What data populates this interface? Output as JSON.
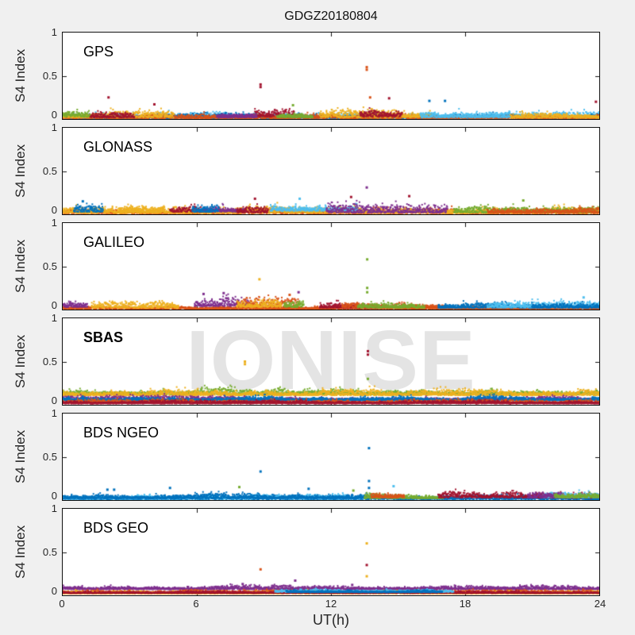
{
  "figure": {
    "title": "GDGZ20180804",
    "xlabel": "UT(h)",
    "ylabel": "S4 Index",
    "watermark": "IONISE",
    "background": "#f0f0f0",
    "panel_bg": "#ffffff",
    "axis_color": "#111111",
    "text_color": "#262626",
    "x_tick_labels": [
      "0",
      "6",
      "12",
      "18",
      "24"
    ],
    "y_tick_labels": [
      "1",
      "0.5",
      "0"
    ]
  },
  "palette": {
    "blue": "#0072BD",
    "orange": "#D95319",
    "yellow": "#EDB120",
    "purple": "#7E2F8E",
    "green": "#77AC30",
    "cyan": "#4DBEEE",
    "red": "#A2142F"
  },
  "chart_data": [
    {
      "type": "scatter",
      "label": "GPS",
      "xlim": [
        0,
        24
      ],
      "ylim": [
        0,
        1
      ],
      "xticks": [
        0,
        6,
        12,
        18,
        24
      ],
      "yticks": [
        0,
        0.5,
        1
      ],
      "bands": [
        {
          "color": "cyan",
          "x0": 0,
          "x1": 24,
          "base": 0.015,
          "amp": 0.07
        },
        {
          "color": "blue",
          "x0": 0,
          "x1": 24,
          "base": 0.01,
          "amp": 0.06
        },
        {
          "color": "orange",
          "x0": 0,
          "x1": 24,
          "base": 0.01,
          "amp": 0.05
        },
        {
          "color": "yellow",
          "x0": 11.5,
          "x1": 16.5,
          "base": 0.02,
          "amp": 0.09
        },
        {
          "color": "yellow",
          "x0": 0,
          "x1": 5,
          "base": 0.02,
          "amp": 0.07
        },
        {
          "color": "yellow",
          "x0": 20,
          "x1": 24,
          "base": 0.015,
          "amp": 0.06
        },
        {
          "color": "red",
          "x0": 8.6,
          "x1": 10.4,
          "base": 0.03,
          "amp": 0.1
        },
        {
          "color": "red",
          "x0": 1.2,
          "x1": 3.2,
          "base": 0.02,
          "amp": 0.08
        },
        {
          "color": "red",
          "x0": 13.3,
          "x1": 15.2,
          "base": 0.03,
          "amp": 0.08
        },
        {
          "color": "purple",
          "x0": 6.9,
          "x1": 8.7,
          "base": 0.02,
          "amp": 0.07
        },
        {
          "color": "green",
          "x0": 9.6,
          "x1": 11.2,
          "base": 0.02,
          "amp": 0.06
        },
        {
          "color": "green",
          "x0": 0,
          "x1": 1.2,
          "base": 0.03,
          "amp": 0.08
        },
        {
          "color": "cyan",
          "x0": 16,
          "x1": 20,
          "base": 0.02,
          "amp": 0.07
        }
      ],
      "spikes": [
        {
          "x": 8.85,
          "y": 0.4,
          "color": "red"
        },
        {
          "x": 8.85,
          "y": 0.37,
          "color": "red"
        },
        {
          "x": 13.6,
          "y": 0.6,
          "color": "orange"
        },
        {
          "x": 13.6,
          "y": 0.57,
          "color": "orange"
        },
        {
          "x": 2.05,
          "y": 0.25,
          "color": "red"
        },
        {
          "x": 13.75,
          "y": 0.25,
          "color": "orange"
        },
        {
          "x": 14.6,
          "y": 0.24,
          "color": "red"
        },
        {
          "x": 16.4,
          "y": 0.21,
          "color": "blue"
        },
        {
          "x": 17.1,
          "y": 0.21,
          "color": "blue"
        },
        {
          "x": 23.85,
          "y": 0.2,
          "color": "red"
        },
        {
          "x": 4.1,
          "y": 0.17,
          "color": "red"
        },
        {
          "x": 10.3,
          "y": 0.16,
          "color": "green"
        }
      ]
    },
    {
      "type": "scatter",
      "label": "GLONASS",
      "xlim": [
        0,
        24
      ],
      "ylim": [
        0,
        1
      ],
      "xticks": [
        0,
        6,
        12,
        18,
        24
      ],
      "yticks": [
        0,
        0.5,
        1
      ],
      "bands": [
        {
          "color": "orange",
          "x0": 0,
          "x1": 24,
          "base": 0.01,
          "amp": 0.06
        },
        {
          "color": "yellow",
          "x0": 0,
          "x1": 24,
          "base": 0.015,
          "amp": 0.08
        },
        {
          "color": "cyan",
          "x0": 9.3,
          "x1": 13.2,
          "base": 0.04,
          "amp": 0.1
        },
        {
          "color": "purple",
          "x0": 11.8,
          "x1": 17.2,
          "base": 0.02,
          "amp": 0.1
        },
        {
          "color": "purple",
          "x0": 6.2,
          "x1": 8.2,
          "base": 0.03,
          "amp": 0.08
        },
        {
          "color": "red",
          "x0": 4.8,
          "x1": 6.2,
          "base": 0.03,
          "amp": 0.08
        },
        {
          "color": "red",
          "x0": 7.8,
          "x1": 9.2,
          "base": 0.02,
          "amp": 0.07
        },
        {
          "color": "blue",
          "x0": 5.8,
          "x1": 7.0,
          "base": 0.03,
          "amp": 0.08
        },
        {
          "color": "green",
          "x0": 17.5,
          "x1": 24,
          "base": 0.02,
          "amp": 0.07
        },
        {
          "color": "orange",
          "x0": 19,
          "x1": 24,
          "base": 0.02,
          "amp": 0.06
        },
        {
          "color": "blue",
          "x0": 0.5,
          "x1": 1.8,
          "base": 0.03,
          "amp": 0.07
        },
        {
          "color": "yellow",
          "x0": 2.5,
          "x1": 4.5,
          "base": 0.03,
          "amp": 0.08
        }
      ],
      "spikes": [
        {
          "x": 13.6,
          "y": 0.31,
          "color": "purple"
        },
        {
          "x": 15.5,
          "y": 0.21,
          "color": "red"
        },
        {
          "x": 12.9,
          "y": 0.2,
          "color": "red"
        },
        {
          "x": 10.6,
          "y": 0.18,
          "color": "cyan"
        },
        {
          "x": 8.6,
          "y": 0.18,
          "color": "red"
        },
        {
          "x": 20.6,
          "y": 0.16,
          "color": "green"
        },
        {
          "x": 0.9,
          "y": 0.15,
          "color": "blue"
        }
      ]
    },
    {
      "type": "scatter",
      "label": "GALILEO",
      "xlim": [
        0,
        24
      ],
      "ylim": [
        0,
        1
      ],
      "xticks": [
        0,
        6,
        12,
        18,
        24
      ],
      "yticks": [
        0,
        0.5,
        1
      ],
      "bands": [
        {
          "color": "orange",
          "x0": 0,
          "x1": 24,
          "base": 0.008,
          "amp": 0.04
        },
        {
          "color": "purple",
          "x0": 0,
          "x1": 1.1,
          "base": 0.03,
          "amp": 0.07
        },
        {
          "color": "yellow",
          "x0": 1.3,
          "x1": 5.2,
          "base": 0.02,
          "amp": 0.08
        },
        {
          "color": "purple",
          "x0": 5.9,
          "x1": 8.4,
          "base": 0.04,
          "amp": 0.1
        },
        {
          "color": "orange",
          "x0": 7.8,
          "x1": 10.6,
          "base": 0.03,
          "amp": 0.12
        },
        {
          "color": "yellow",
          "x0": 7.8,
          "x1": 9.8,
          "base": 0.03,
          "amp": 0.09
        },
        {
          "color": "green",
          "x0": 9.9,
          "x1": 10.8,
          "base": 0.03,
          "amp": 0.1
        },
        {
          "color": "red",
          "x0": 11.5,
          "x1": 14.2,
          "base": 0.02,
          "amp": 0.06
        },
        {
          "color": "orange",
          "x0": 12.5,
          "x1": 17.3,
          "base": 0.025,
          "amp": 0.06
        },
        {
          "color": "green",
          "x0": 13.2,
          "x1": 16.2,
          "base": 0.02,
          "amp": 0.06
        },
        {
          "color": "blue",
          "x0": 16.8,
          "x1": 21,
          "base": 0.02,
          "amp": 0.06
        },
        {
          "color": "cyan",
          "x0": 19,
          "x1": 24,
          "base": 0.025,
          "amp": 0.07
        },
        {
          "color": "blue",
          "x0": 21,
          "x1": 24,
          "base": 0.02,
          "amp": 0.06
        }
      ],
      "spikes": [
        {
          "x": 8.8,
          "y": 0.35,
          "color": "yellow"
        },
        {
          "x": 13.62,
          "y": 0.58,
          "color": "green"
        },
        {
          "x": 13.62,
          "y": 0.25,
          "color": "green"
        },
        {
          "x": 13.62,
          "y": 0.2,
          "color": "green"
        },
        {
          "x": 10.55,
          "y": 0.2,
          "color": "purple"
        },
        {
          "x": 10.15,
          "y": 0.17,
          "color": "orange"
        },
        {
          "x": 23.3,
          "y": 0.14,
          "color": "cyan"
        },
        {
          "x": 6.3,
          "y": 0.18,
          "color": "purple"
        },
        {
          "x": 7.2,
          "y": 0.19,
          "color": "purple"
        }
      ]
    },
    {
      "type": "scatter",
      "label": "SBAS",
      "xlim": [
        0,
        24
      ],
      "ylim": [
        0,
        1
      ],
      "xticks": [
        0,
        6,
        12,
        18,
        24
      ],
      "yticks": [
        0,
        0.5,
        1
      ],
      "bands": [
        {
          "color": "green",
          "x0": 0,
          "x1": 24,
          "base": 0.12,
          "amp": 0.07
        },
        {
          "color": "yellow",
          "x0": 0,
          "x1": 24,
          "base": 0.11,
          "amp": 0.07
        },
        {
          "color": "purple",
          "x0": 0,
          "x1": 24,
          "base": 0.055,
          "amp": 0.05
        },
        {
          "color": "blue",
          "x0": 0,
          "x1": 24,
          "base": 0.05,
          "amp": 0.05
        },
        {
          "color": "orange",
          "x0": 0,
          "x1": 24,
          "base": 0.02,
          "amp": 0.04
        },
        {
          "color": "red",
          "x0": 0,
          "x1": 24,
          "base": 0.015,
          "amp": 0.035
        }
      ],
      "spikes": [
        {
          "x": 13.65,
          "y": 0.62,
          "color": "red"
        },
        {
          "x": 13.65,
          "y": 0.58,
          "color": "red"
        },
        {
          "x": 13.65,
          "y": 0.3,
          "color": "green"
        },
        {
          "x": 8.15,
          "y": 0.5,
          "color": "yellow"
        },
        {
          "x": 8.15,
          "y": 0.47,
          "color": "yellow"
        }
      ]
    },
    {
      "type": "scatter",
      "label": "BDS NGEO",
      "xlim": [
        0,
        24
      ],
      "ylim": [
        0,
        1
      ],
      "xticks": [
        0,
        6,
        12,
        18,
        24
      ],
      "yticks": [
        0,
        0.5,
        1
      ],
      "bands": [
        {
          "color": "blue",
          "x0": 0,
          "x1": 24,
          "base": 0.01,
          "amp": 0.05
        },
        {
          "color": "cyan",
          "x0": 0,
          "x1": 13.5,
          "base": 0.015,
          "amp": 0.05
        },
        {
          "color": "blue",
          "x0": 0,
          "x1": 13.5,
          "base": 0.02,
          "amp": 0.06
        },
        {
          "color": "green",
          "x0": 13.5,
          "x1": 17,
          "base": 0.02,
          "amp": 0.06
        },
        {
          "color": "red",
          "x0": 16.8,
          "x1": 21.5,
          "base": 0.03,
          "amp": 0.07
        },
        {
          "color": "orange",
          "x0": 13.8,
          "x1": 15.3,
          "base": 0.03,
          "amp": 0.06
        },
        {
          "color": "red",
          "x0": 21,
          "x1": 24,
          "base": 0.025,
          "amp": 0.06
        },
        {
          "color": "cyan",
          "x0": 21.5,
          "x1": 24,
          "base": 0.03,
          "amp": 0.06
        },
        {
          "color": "purple",
          "x0": 20.8,
          "x1": 22.3,
          "base": 0.03,
          "amp": 0.06
        },
        {
          "color": "green",
          "x0": 22,
          "x1": 24,
          "base": 0.03,
          "amp": 0.06
        }
      ],
      "spikes": [
        {
          "x": 8.85,
          "y": 0.33,
          "color": "blue"
        },
        {
          "x": 13.7,
          "y": 0.6,
          "color": "blue"
        },
        {
          "x": 13.7,
          "y": 0.22,
          "color": "blue"
        },
        {
          "x": 13.7,
          "y": 0.14,
          "color": "blue"
        },
        {
          "x": 11.0,
          "y": 0.13,
          "color": "blue"
        },
        {
          "x": 4.8,
          "y": 0.14,
          "color": "blue"
        },
        {
          "x": 2.0,
          "y": 0.12,
          "color": "blue"
        },
        {
          "x": 2.3,
          "y": 0.12,
          "color": "blue"
        },
        {
          "x": 7.9,
          "y": 0.15,
          "color": "green"
        },
        {
          "x": 14.8,
          "y": 0.16,
          "color": "cyan"
        },
        {
          "x": 13.0,
          "y": 0.11,
          "color": "green"
        }
      ]
    },
    {
      "type": "scatter",
      "label": "BDS GEO",
      "xlim": [
        0,
        24
      ],
      "ylim": [
        0,
        1
      ],
      "xticks": [
        0,
        6,
        12,
        18,
        24
      ],
      "yticks": [
        0,
        0.5,
        1
      ],
      "bands": [
        {
          "color": "purple",
          "x0": 0,
          "x1": 24,
          "base": 0.07,
          "amp": 0.045
        },
        {
          "color": "orange",
          "x0": 0,
          "x1": 24,
          "base": 0.03,
          "amp": 0.03
        },
        {
          "color": "yellow",
          "x0": 0,
          "x1": 24,
          "base": 0.02,
          "amp": 0.035
        },
        {
          "color": "red",
          "x0": 0,
          "x1": 24,
          "base": 0.025,
          "amp": 0.025
        },
        {
          "color": "cyan",
          "x0": 9.5,
          "x1": 17.5,
          "base": 0.04,
          "amp": 0.03
        },
        {
          "color": "blue",
          "x0": 10,
          "x1": 17,
          "base": 0.035,
          "amp": 0.03
        }
      ],
      "spikes": [
        {
          "x": 8.85,
          "y": 0.3,
          "color": "orange"
        },
        {
          "x": 13.6,
          "y": 0.6,
          "color": "yellow"
        },
        {
          "x": 13.6,
          "y": 0.35,
          "color": "red"
        },
        {
          "x": 13.6,
          "y": 0.22,
          "color": "yellow"
        },
        {
          "x": 10.4,
          "y": 0.17,
          "color": "purple"
        },
        {
          "x": 8.05,
          "y": 0.13,
          "color": "purple"
        },
        {
          "x": 12.95,
          "y": 0.12,
          "color": "purple"
        }
      ]
    }
  ]
}
